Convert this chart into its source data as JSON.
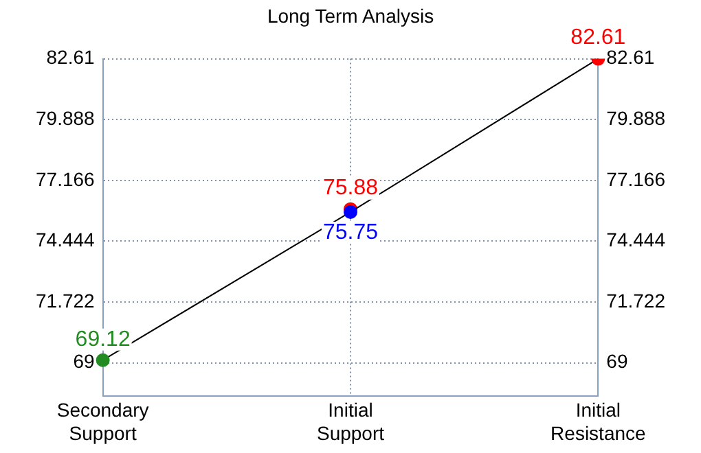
{
  "chart_data": {
    "type": "line",
    "title": "Long Term Analysis",
    "categories": [
      "Secondary Support",
      "Initial Support",
      "Initial Resistance"
    ],
    "series": [
      {
        "type": "line",
        "color": "#000000",
        "colors": [
          "#228b22",
          "#0000ff",
          "#ff0000"
        ],
        "values": [
          69.12,
          75.75,
          82.61
        ]
      },
      {
        "type": "scatter",
        "color": "#ff0000",
        "values": [
          null,
          75.88,
          null
        ]
      }
    ],
    "ylim": [
      67.52,
      82.61
    ],
    "yticks": [
      69,
      71.722,
      74.444,
      77.166,
      79.888,
      82.61
    ],
    "y2lim": [
      67.52,
      82.61
    ],
    "y2ticks": [
      69,
      71.722,
      74.444,
      77.166,
      79.888,
      82.61
    ],
    "grid": true,
    "data_labels": true,
    "marker": "circle",
    "line_style": "solid"
  }
}
